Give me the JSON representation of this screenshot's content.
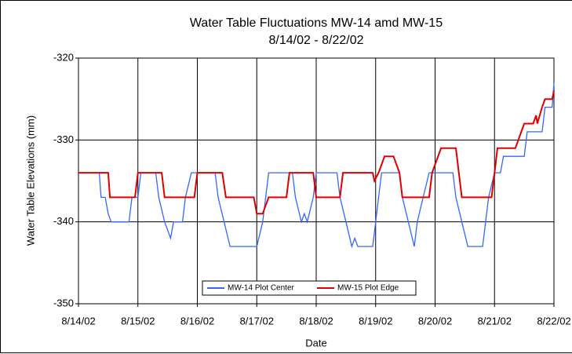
{
  "chart_data": {
    "type": "line",
    "title": "Water Table Fluctuations MW-14 amd MW-15",
    "subtitle": "8/14/02 - 8/22/02",
    "x_label": "Date",
    "y_label": "Water Table Elevations (mm)",
    "xlim": [
      0,
      8
    ],
    "xticks": [
      {
        "value": 0,
        "label": "8/14/02"
      },
      {
        "value": 1,
        "label": "8/15/02"
      },
      {
        "value": 2,
        "label": "8/16/02"
      },
      {
        "value": 3,
        "label": "8/17/02"
      },
      {
        "value": 4,
        "label": "8/18/02"
      },
      {
        "value": 5,
        "label": "8/19/02"
      },
      {
        "value": 6,
        "label": "8/20/02"
      },
      {
        "value": 7,
        "label": "8/21/02"
      },
      {
        "value": 8,
        "label": "8/22/02"
      }
    ],
    "ylim": [
      -350,
      -320
    ],
    "yticks": [
      -350,
      -340,
      -330,
      -320
    ],
    "grid": true,
    "legend": "bottom",
    "series": [
      {
        "name": "MW-14 Plot Center",
        "color": "#3366ff",
        "x": [
          0,
          0.35,
          0.38,
          0.45,
          0.5,
          0.55,
          0.85,
          0.9,
          1.0,
          1.05,
          1.3,
          1.35,
          1.45,
          1.55,
          1.6,
          1.75,
          1.8,
          1.9,
          2.3,
          2.35,
          2.45,
          2.55,
          3.0,
          3.1,
          3.15,
          3.2,
          3.6,
          3.65,
          3.75,
          3.8,
          3.85,
          3.95,
          4.0,
          4.35,
          4.4,
          4.5,
          4.6,
          4.65,
          4.7,
          4.95,
          5.0,
          5.05,
          5.1,
          5.4,
          5.45,
          5.55,
          5.65,
          5.7,
          5.8,
          5.9,
          6.3,
          6.35,
          6.45,
          6.55,
          6.8,
          6.85,
          6.9,
          7.0,
          7.1,
          7.15,
          7.5,
          7.55,
          7.8,
          7.85,
          7.97,
          8.0
        ],
        "values": [
          -334,
          -334,
          -337,
          -337,
          -339,
          -340,
          -340,
          -337,
          -337,
          -334,
          -334,
          -337,
          -340,
          -342,
          -340,
          -340,
          -337,
          -334,
          -334,
          -337,
          -340,
          -343,
          -343,
          -340,
          -337,
          -334,
          -334,
          -337,
          -340,
          -339,
          -340,
          -337,
          -334,
          -334,
          -337,
          -340,
          -343,
          -342,
          -343,
          -343,
          -340,
          -337,
          -334,
          -334,
          -337,
          -340,
          -343,
          -340,
          -337,
          -334,
          -334,
          -337,
          -340,
          -343,
          -343,
          -340,
          -337,
          -334,
          -334,
          -332,
          -332,
          -329,
          -329,
          -326,
          -326,
          -323
        ]
      },
      {
        "name": "MW-15 Plot Edge",
        "color": "#dd0000",
        "x": [
          0,
          0.5,
          0.53,
          0.95,
          1.0,
          1.4,
          1.45,
          1.95,
          2.0,
          2.42,
          2.48,
          2.95,
          3.0,
          3.1,
          3.15,
          3.2,
          3.5,
          3.55,
          3.95,
          4.0,
          4.4,
          4.45,
          4.95,
          4.98,
          5.05,
          5.1,
          5.15,
          5.3,
          5.35,
          5.4,
          5.45,
          5.9,
          5.95,
          6.0,
          6.1,
          6.35,
          6.4,
          6.45,
          6.95,
          7.0,
          7.05,
          7.35,
          7.4,
          7.5,
          7.65,
          7.7,
          7.72,
          7.8,
          7.85,
          7.97,
          8.0
        ],
        "values": [
          -334,
          -334,
          -337,
          -337,
          -334,
          -334,
          -337,
          -337,
          -334,
          -334,
          -337,
          -337,
          -339,
          -339,
          -338,
          -337,
          -337,
          -334,
          -334,
          -337,
          -337,
          -334,
          -334,
          -335,
          -334,
          -333,
          -332,
          -332,
          -333,
          -334,
          -337,
          -337,
          -334,
          -333,
          -331,
          -331,
          -334,
          -337,
          -337,
          -334,
          -331,
          -331,
          -330,
          -328,
          -328,
          -327,
          -328,
          -326,
          -325,
          -325,
          -324
        ]
      }
    ]
  }
}
